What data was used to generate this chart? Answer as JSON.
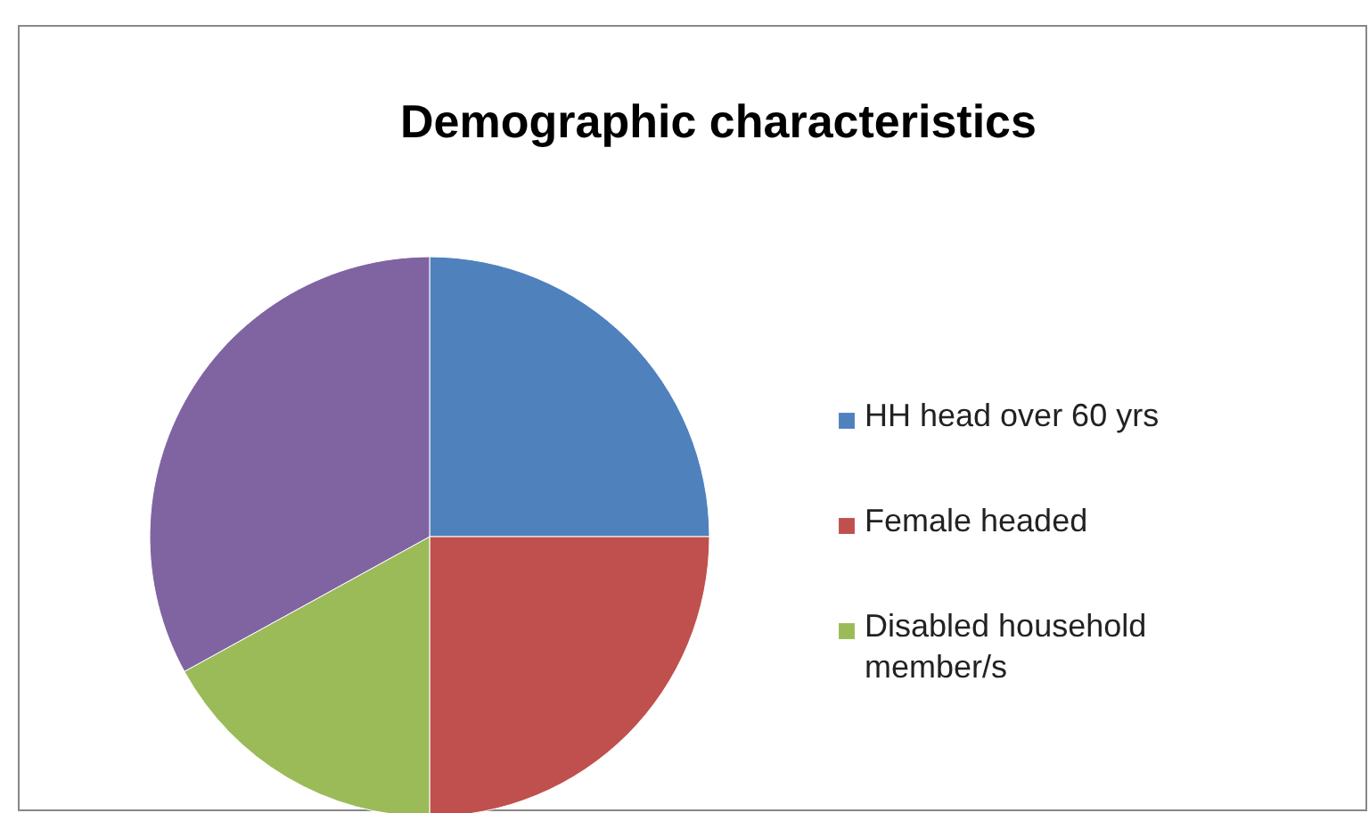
{
  "chart_data": {
    "type": "pie",
    "title": "Demographic characteristics",
    "categories": [
      "HH head over 60 yrs",
      "Female headed",
      "Disabled household member/s",
      null
    ],
    "values": [
      25,
      25,
      17,
      33
    ],
    "colors": [
      "#4f81bd",
      "#c0504d",
      "#9bbb59",
      "#8064a2"
    ],
    "legend": "right"
  }
}
